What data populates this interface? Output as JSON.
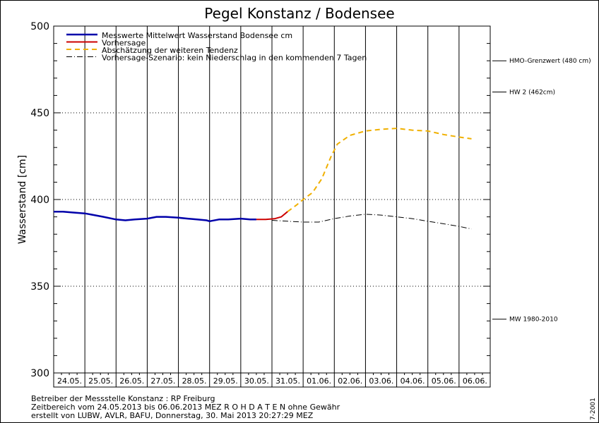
{
  "chart_data": {
    "type": "line",
    "title": "Pegel Konstanz / Bodensee",
    "xlabel": "",
    "ylabel": "Wasserstand [cm]",
    "ylim": [
      300,
      500
    ],
    "yticks": [
      300,
      350,
      400,
      450,
      500
    ],
    "categories": [
      "24.05.",
      "25.05.",
      "26.05.",
      "27.05.",
      "28.05.",
      "29.05.",
      "30.05.",
      "31.05.",
      "01.06.",
      "02.06.",
      "03.06.",
      "04.06.",
      "05.06.",
      "06.06."
    ],
    "legend": [
      {
        "label": "Messwerte Mittelwert Wasserstand Bodensee cm",
        "color": "#0000aa",
        "style": "solid"
      },
      {
        "label": "Vorhersage",
        "color": "#cc0000",
        "style": "solid"
      },
      {
        "label": "Abschätzung der weiteren Tendenz",
        "color": "#f0b000",
        "style": "dashed"
      },
      {
        "label": "Vorhersage-Szenario: kein Niederschlag in den kommenden 7 Tagen",
        "color": "#000000",
        "style": "dashdot"
      }
    ],
    "series": [
      {
        "name": "Messwerte Mittelwert Wasserstand Bodensee cm",
        "x": [
          0,
          0.3,
          0.6,
          1.0,
          1.3,
          1.6,
          2.0,
          2.3,
          2.6,
          3.0,
          3.3,
          3.6,
          4.0,
          4.3,
          4.6,
          4.9,
          5.0,
          5.3,
          5.6,
          6.0,
          6.3,
          6.5
        ],
        "values": [
          393,
          393,
          392.5,
          392,
          391,
          390,
          388.5,
          388,
          388.5,
          389,
          390,
          390,
          389.5,
          389,
          388.5,
          388,
          387.5,
          388.5,
          388.5,
          389,
          388.5,
          388.5
        ]
      },
      {
        "name": "Vorhersage",
        "x": [
          6.5,
          6.8,
          7.1,
          7.3,
          7.5
        ],
        "values": [
          388.5,
          388.5,
          389,
          390,
          393
        ]
      },
      {
        "name": "Abschätzung der weiteren Tendenz",
        "x": [
          7.5,
          7.8,
          8.0,
          8.3,
          8.6,
          8.9,
          9.1,
          9.5,
          10.0,
          10.5,
          11.0,
          11.5,
          12.0,
          12.5,
          13.0,
          13.4
        ],
        "values": [
          393,
          397,
          400,
          404,
          412,
          425,
          432,
          437,
          439.5,
          440.5,
          441,
          440,
          439.5,
          437.5,
          436,
          435
        ]
      },
      {
        "name": "Vorhersage-Szenario: kein Niederschlag in den kommenden 7 Tagen",
        "x": [
          7.0,
          7.5,
          8.0,
          8.5,
          9.0,
          9.5,
          10.0,
          10.5,
          11.0,
          11.5,
          12.0,
          12.5,
          13.0,
          13.4
        ],
        "values": [
          388,
          387.5,
          387,
          387,
          389,
          390.5,
          391.5,
          391,
          390,
          389,
          387.5,
          386,
          384.5,
          383
        ]
      }
    ],
    "reference_lines": [
      {
        "label": "HMO-Grenzwert (480 cm)",
        "value": 480
      },
      {
        "label": "HW 2 (462cm)",
        "value": 462
      },
      {
        "label": "MW 1980-2010",
        "value": 331
      }
    ]
  },
  "footer": {
    "line1": "Betreiber der Messstelle Konstanz : RP Freiburg",
    "line2": "Zeitbereich vom 24.05.2013 bis 06.06.2013    MEZ    R O H D A T E N ohne Gewähr",
    "line3": "erstellt von LUBW, AVLR, BAFU, Donnerstag, 30. Mai 2013 20:27:29 MEZ"
  },
  "side_code": "7-2001",
  "colors": {
    "measured": "#0000aa",
    "forecast": "#cc0000",
    "tendency": "#f0b000",
    "scenario": "#000000"
  }
}
